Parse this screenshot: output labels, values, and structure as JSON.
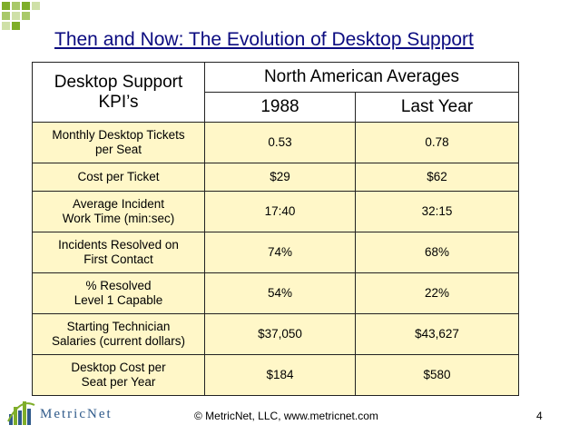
{
  "title": "Then and Now: The Evolution of Desktop Support",
  "table": {
    "kpi_header_line1": "Desktop Support",
    "kpi_header_line2": "KPI’s",
    "group_header": "North American Averages",
    "col_1988": "1988",
    "col_last_year": "Last Year",
    "rows": [
      {
        "kpi_line1": "Monthly Desktop Tickets",
        "kpi_line2": "per Seat",
        "v1988": "0.53",
        "vlast": "0.78"
      },
      {
        "kpi_line1": "Cost per Ticket",
        "kpi_line2": "",
        "v1988": "$29",
        "vlast": "$62"
      },
      {
        "kpi_line1": "Average Incident",
        "kpi_line2": "Work Time (min:sec)",
        "v1988": "17:40",
        "vlast": "32:15"
      },
      {
        "kpi_line1": "Incidents Resolved on",
        "kpi_line2": "First Contact",
        "v1988": "74%",
        "vlast": "68%"
      },
      {
        "kpi_line1": "% Resolved",
        "kpi_line2": "Level 1 Capable",
        "v1988": "54%",
        "vlast": "22%"
      },
      {
        "kpi_line1": "Starting Technician",
        "kpi_line2": "Salaries (current dollars)",
        "v1988": "$37,050",
        "vlast": "$43,627"
      },
      {
        "kpi_line1": "Desktop Cost per",
        "kpi_line2": "Seat per Year",
        "v1988": "$184",
        "vlast": "$580"
      }
    ]
  },
  "footer": {
    "logo_text": "MetricNet",
    "copyright": "© MetricNet, LLC, www.metricnet.com",
    "page_number": "4"
  },
  "colors": {
    "title": "#0b0b80",
    "row_fill": "#fff7c8",
    "corner_green": "#7fae2a",
    "logo_text": "#2f5a8a"
  }
}
